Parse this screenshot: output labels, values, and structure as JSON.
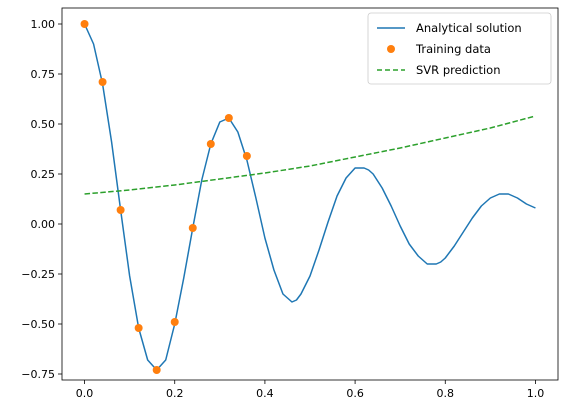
{
  "chart_data": {
    "type": "line",
    "title": "",
    "xlabel": "",
    "ylabel": "",
    "xlim": [
      -0.05,
      1.05
    ],
    "ylim": [
      -0.78,
      1.08
    ],
    "grid": false,
    "legend_position": "top-right",
    "x_ticks": [
      {
        "value": 0.0,
        "label": "0.0"
      },
      {
        "value": 0.2,
        "label": "0.2"
      },
      {
        "value": 0.4,
        "label": "0.4"
      },
      {
        "value": 0.6,
        "label": "0.6"
      },
      {
        "value": 0.8,
        "label": "0.8"
      },
      {
        "value": 1.0,
        "label": "1.0"
      }
    ],
    "y_ticks": [
      {
        "value": -0.75,
        "label": "−0.75"
      },
      {
        "value": -0.5,
        "label": "−0.50"
      },
      {
        "value": -0.25,
        "label": "−0.25"
      },
      {
        "value": 0.0,
        "label": "0.00"
      },
      {
        "value": 0.25,
        "label": "0.25"
      },
      {
        "value": 0.5,
        "label": "0.50"
      },
      {
        "value": 0.75,
        "label": "0.75"
      },
      {
        "value": 1.0,
        "label": "1.00"
      }
    ],
    "series": [
      {
        "name": "Analytical solution",
        "kind": "line",
        "color": "#1f77b4",
        "x": [
          0.0,
          0.02,
          0.04,
          0.06,
          0.08,
          0.1,
          0.12,
          0.14,
          0.16,
          0.18,
          0.2,
          0.22,
          0.24,
          0.26,
          0.28,
          0.3,
          0.32,
          0.34,
          0.36,
          0.38,
          0.4,
          0.42,
          0.44,
          0.46,
          0.47,
          0.48,
          0.5,
          0.52,
          0.54,
          0.56,
          0.58,
          0.6,
          0.62,
          0.63,
          0.64,
          0.66,
          0.68,
          0.7,
          0.72,
          0.74,
          0.76,
          0.78,
          0.79,
          0.8,
          0.82,
          0.84,
          0.86,
          0.88,
          0.9,
          0.92,
          0.94,
          0.95,
          0.96,
          0.98,
          1.0
        ],
        "y": [
          1.0,
          0.9,
          0.7,
          0.41,
          0.07,
          -0.26,
          -0.52,
          -0.68,
          -0.73,
          -0.68,
          -0.5,
          -0.27,
          -0.02,
          0.22,
          0.4,
          0.51,
          0.53,
          0.46,
          0.32,
          0.13,
          -0.07,
          -0.23,
          -0.35,
          -0.39,
          -0.38,
          -0.35,
          -0.26,
          -0.13,
          0.01,
          0.14,
          0.23,
          0.28,
          0.28,
          0.27,
          0.25,
          0.18,
          0.09,
          -0.01,
          -0.1,
          -0.16,
          -0.2,
          -0.2,
          -0.19,
          -0.17,
          -0.11,
          -0.04,
          0.03,
          0.09,
          0.13,
          0.15,
          0.15,
          0.14,
          0.13,
          0.1,
          0.08
        ]
      },
      {
        "name": "Training data",
        "kind": "scatter",
        "color": "#ff7f0e",
        "x": [
          0.0,
          0.04,
          0.08,
          0.12,
          0.16,
          0.2,
          0.24,
          0.28,
          0.32,
          0.36
        ],
        "y": [
          1.0,
          0.71,
          0.07,
          -0.52,
          -0.73,
          -0.49,
          -0.02,
          0.4,
          0.53,
          0.34
        ]
      },
      {
        "name": "SVR prediction",
        "kind": "dashed-line",
        "color": "#2ca02c",
        "x": [
          0.0,
          0.1,
          0.2,
          0.3,
          0.4,
          0.5,
          0.6,
          0.7,
          0.8,
          0.9,
          1.0
        ],
        "y": [
          0.15,
          0.17,
          0.195,
          0.225,
          0.255,
          0.29,
          0.335,
          0.38,
          0.43,
          0.48,
          0.54
        ]
      }
    ]
  }
}
